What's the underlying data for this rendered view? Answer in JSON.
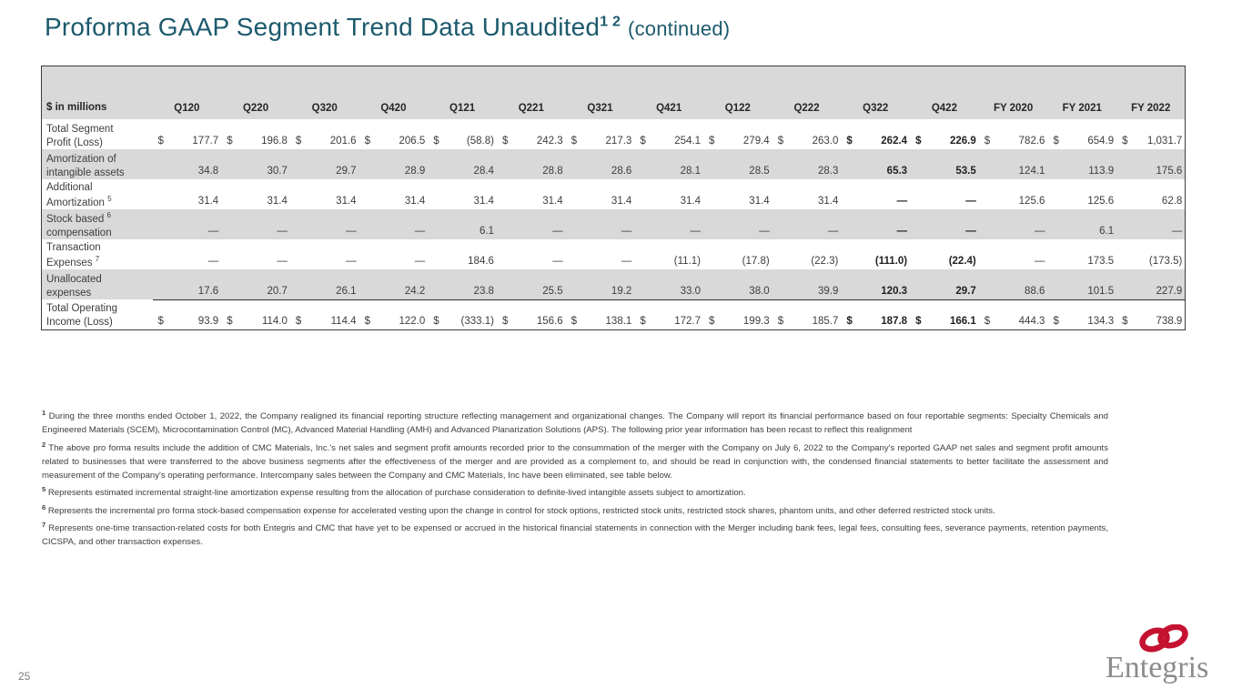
{
  "slide": {
    "title_main": "Proforma GAAP Segment Trend Data Unaudited",
    "title_sup": "1 2",
    "title_suffix": "(continued)",
    "page_number": "25"
  },
  "colors": {
    "title_teal": "#1d5a6d",
    "row_shade": "#d9d9d9",
    "table_border": "#3c3c3c",
    "logo_red": "#c41230",
    "logo_gray": "#8a8c8e"
  },
  "table": {
    "unit_label": "$ in millions",
    "columns": [
      "Q120",
      "Q220",
      "Q320",
      "Q420",
      "Q121",
      "Q221",
      "Q321",
      "Q421",
      "Q122",
      "Q222",
      "Q322",
      "Q422",
      "FY 2020",
      "FY 2021",
      "FY 2022"
    ],
    "bold_columns": [
      10,
      11
    ],
    "rows": [
      {
        "label_lines": [
          "Total Segment",
          "Profit (Loss)"
        ],
        "dollar": true,
        "shaded": false,
        "underline_after": false,
        "values": [
          "177.7",
          "196.8",
          "201.6",
          "206.5",
          "(58.8)",
          "242.3",
          "217.3",
          "254.1",
          "279.4",
          "263.0",
          "262.4",
          "226.9",
          "782.6",
          "654.9",
          "1,031.7"
        ]
      },
      {
        "label_lines": [
          "Amortization of",
          "intangible assets"
        ],
        "dollar": false,
        "shaded": true,
        "underline_after": false,
        "values": [
          "34.8",
          "30.7",
          "29.7",
          "28.9",
          "28.4",
          "28.8",
          "28.6",
          "28.1",
          "28.5",
          "28.3",
          "65.3",
          "53.5",
          "124.1",
          "113.9",
          "175.6"
        ]
      },
      {
        "label_lines": [
          "Additional",
          "Amortization ^5"
        ],
        "dollar": false,
        "shaded": false,
        "underline_after": false,
        "values": [
          "31.4",
          "31.4",
          "31.4",
          "31.4",
          "31.4",
          "31.4",
          "31.4",
          "31.4",
          "31.4",
          "31.4",
          "—",
          "—",
          "125.6",
          "125.6",
          "62.8"
        ]
      },
      {
        "label_lines": [
          "Stock based ^6",
          "compensation"
        ],
        "dollar": false,
        "shaded": true,
        "underline_after": false,
        "values": [
          "—",
          "—",
          "—",
          "—",
          "6.1",
          "—",
          "—",
          "—",
          "—",
          "—",
          "—",
          "—",
          "—",
          "6.1",
          "—"
        ]
      },
      {
        "label_lines": [
          "Transaction",
          "Expenses ^7"
        ],
        "dollar": false,
        "shaded": false,
        "underline_after": false,
        "values": [
          "—",
          "—",
          "—",
          "—",
          "184.6",
          "—",
          "—",
          "(11.1)",
          "(17.8)",
          "(22.3)",
          "(111.0)",
          "(22.4)",
          "—",
          "173.5",
          "(173.5)"
        ]
      },
      {
        "label_lines": [
          "Unallocated",
          "expenses"
        ],
        "dollar": false,
        "shaded": true,
        "underline_after": true,
        "values": [
          "17.6",
          "20.7",
          "26.1",
          "24.2",
          "23.8",
          "25.5",
          "19.2",
          "33.0",
          "38.0",
          "39.9",
          "120.3",
          "29.7",
          "88.6",
          "101.5",
          "227.9"
        ]
      },
      {
        "label_lines": [
          "Total Operating",
          "Income (Loss)"
        ],
        "dollar": true,
        "shaded": false,
        "underline_after": false,
        "values": [
          "93.9",
          "114.0",
          "114.4",
          "122.0",
          "(333.1)",
          "156.6",
          "138.1",
          "172.7",
          "199.3",
          "185.7",
          "187.8",
          "166.1",
          "444.3",
          "134.3",
          "738.9"
        ]
      }
    ]
  },
  "footnotes": [
    {
      "sup": "1",
      "text": "During the three months ended October 1, 2022, the Company realigned its financial reporting structure reflecting management and organizational changes.  The Company will report its financial performance based on four reportable segments: Specialty Chemicals and Engineered Materials (SCEM), Microcontamination Control (MC), Advanced Material Handling (AMH) and Advanced Planarization Solutions (APS). The following prior year information has been recast to reflect this realignment"
    },
    {
      "sup": "2",
      "text": "The above pro forma results include the addition of CMC Materials, Inc.'s net sales and segment profit amounts recorded prior to the consummation of the merger with the Company on July 6, 2022 to the Company's reported GAAP net sales and segment profit amounts related to businesses that were transferred to the above business segments after the effectiveness of the merger and are provided as a complement to, and should be read in conjunction with, the condensed financial statements to better facilitate the assessment and measurement of the Company's operating performance. Intercompany sales between the Company and CMC Materials, Inc have been eliminated, see table below."
    },
    {
      "sup": "5",
      "text": "Represents estimated incremental straight-line amortization expense resulting from the allocation of purchase consideration to definite-lived intangible assets subject to amortization."
    },
    {
      "sup": "6",
      "text": "Represents the incremental pro forma stock-based compensation expense for accelerated vesting upon the change in control for stock options, restricted stock units, restricted stock shares, phantom units, and other deferred restricted stock units."
    },
    {
      "sup": "7",
      "text": "Represents one-time transaction-related costs for both Entegris and CMC that have yet to be expensed or accrued in the historical financial statements in connection with the Merger including bank fees, legal fees, consulting fees, severance payments, retention payments, CICSPA, and other transaction expenses."
    }
  ],
  "logo": {
    "name": "Entegris",
    "text": "Entegris"
  }
}
